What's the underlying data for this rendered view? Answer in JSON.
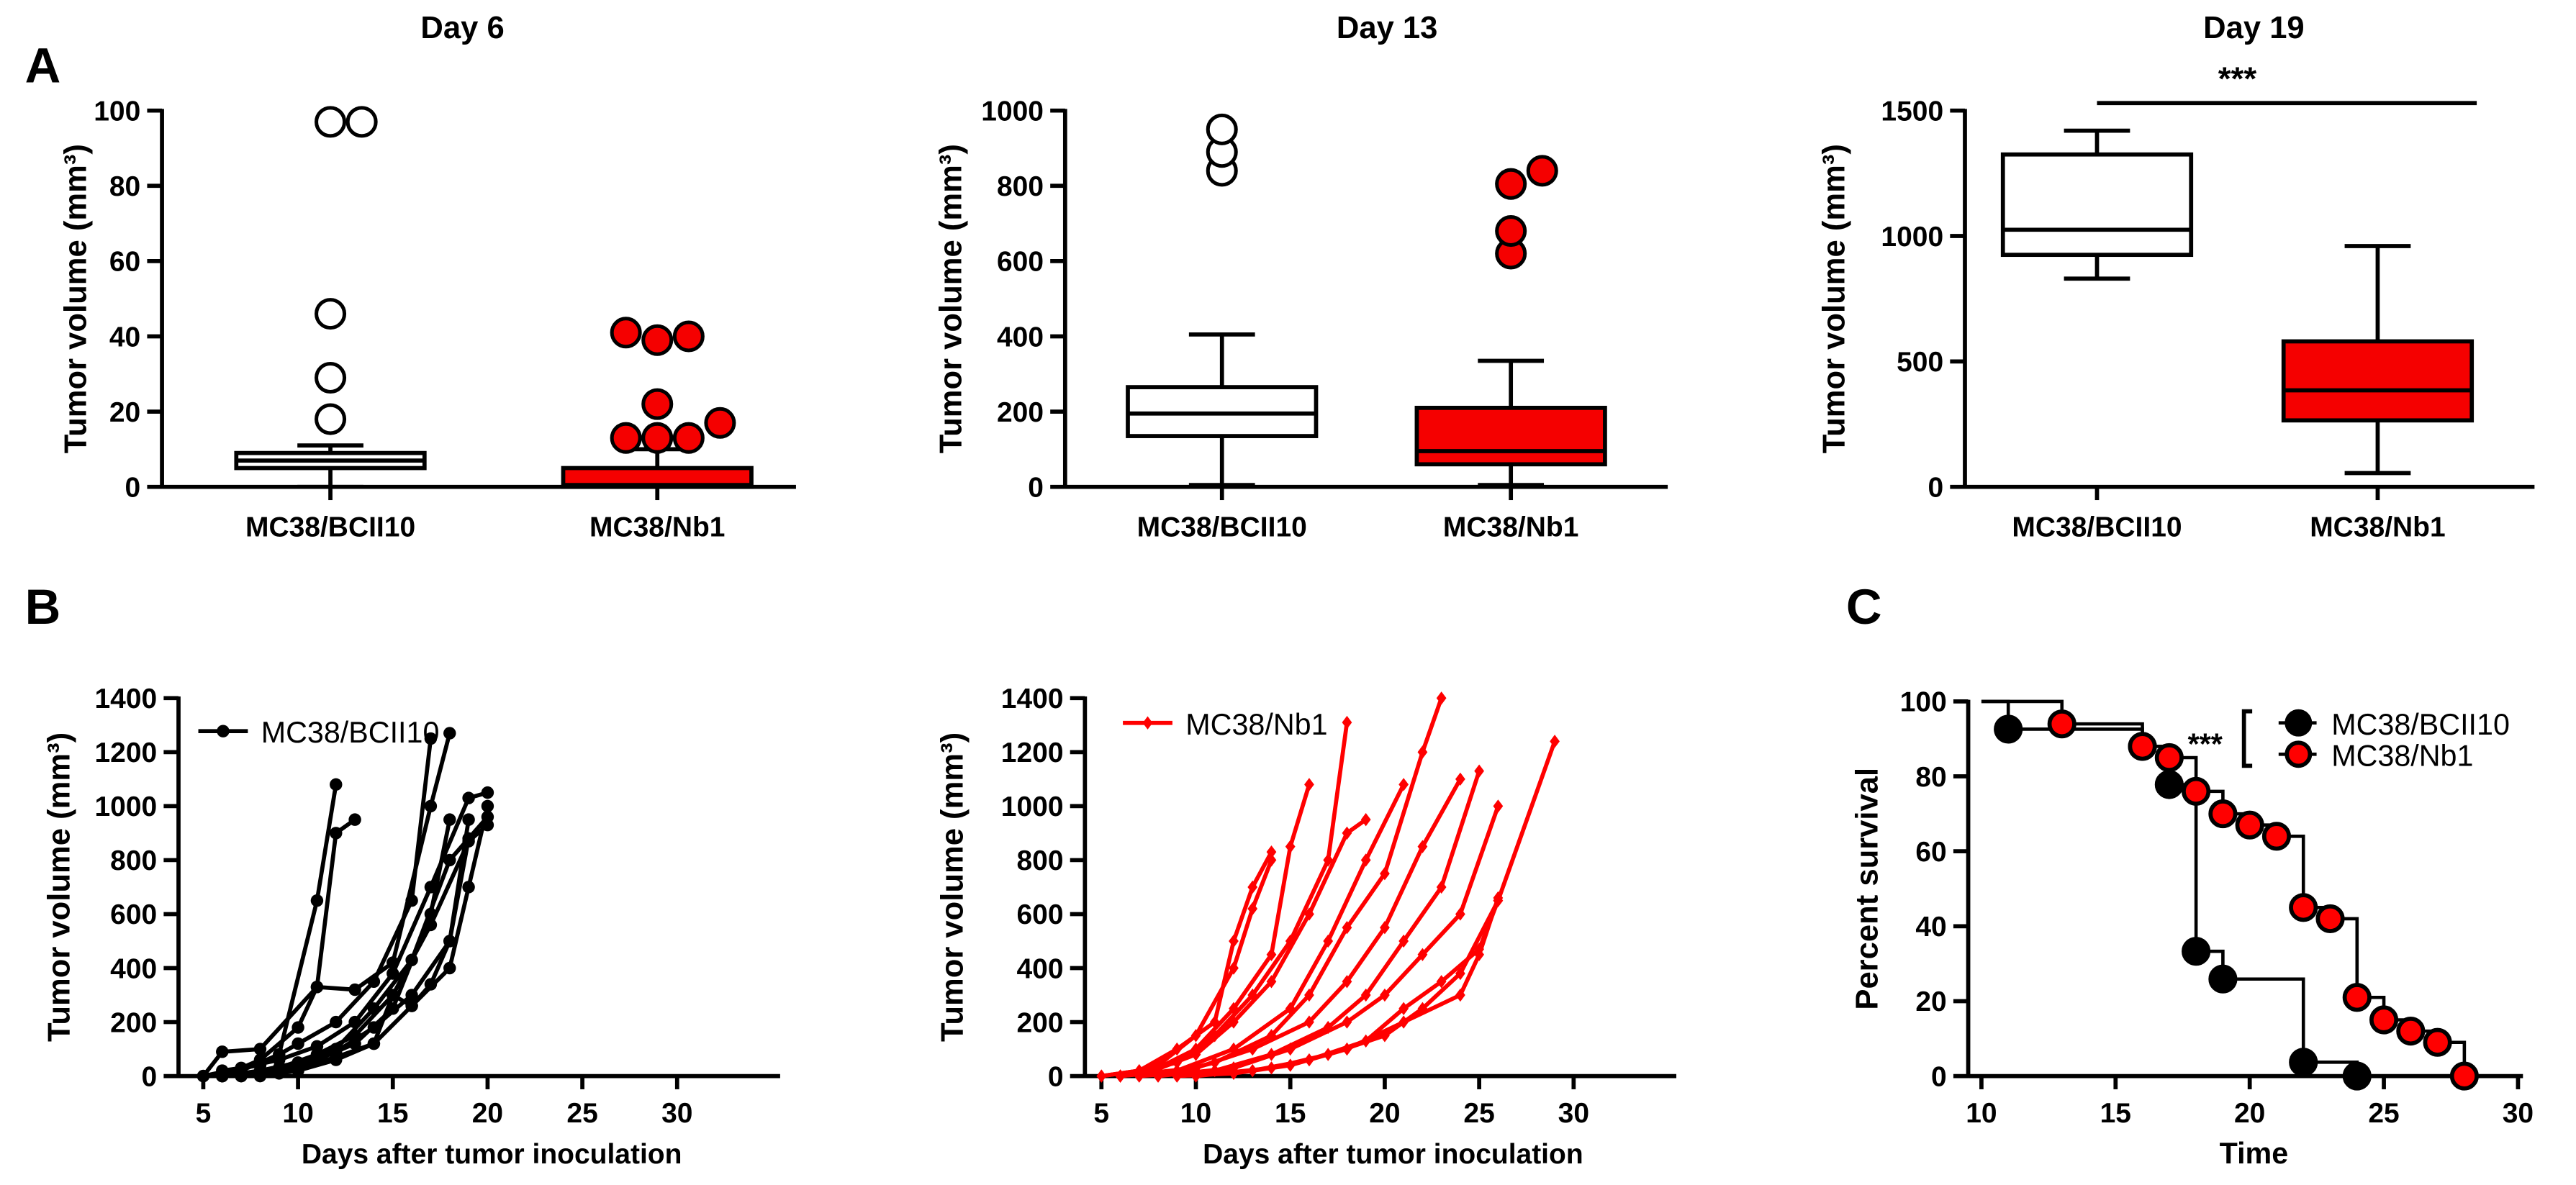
{
  "panel_labels": [
    "A",
    "B",
    "C"
  ],
  "colors": {
    "control": "#000000",
    "treated": "#ff0000",
    "treated_fill": "#f50000"
  },
  "chart_data": [
    {
      "type": "box",
      "title": "Day 6",
      "ylabel": "Tumor volume (mm³)",
      "ylim": [
        0,
        100
      ],
      "yticks": [
        0,
        20,
        40,
        60,
        80,
        100
      ],
      "categories": [
        "MC38/BCII10",
        "MC38/Nb1"
      ],
      "boxes": [
        {
          "whisker_low": 0,
          "q1": 5,
          "median": 7,
          "q3": 9,
          "whisker_high": 11,
          "outliers": [
            18,
            29,
            46,
            97,
            97
          ],
          "fill": "white"
        },
        {
          "whisker_low": 0,
          "q1": 0,
          "median": 0.5,
          "q3": 5,
          "whisker_high": 10,
          "outliers": [
            13,
            13,
            13,
            17,
            22,
            39,
            40,
            41
          ],
          "fill": "red"
        }
      ]
    },
    {
      "type": "box",
      "title": "Day 13",
      "ylabel": "Tumor volume (mm³)",
      "ylim": [
        0,
        1000
      ],
      "yticks": [
        0,
        200,
        400,
        600,
        800,
        1000
      ],
      "categories": [
        "MC38/BCII10",
        "MC38/Nb1"
      ],
      "boxes": [
        {
          "whisker_low": 5,
          "q1": 135,
          "median": 195,
          "q3": 265,
          "whisker_high": 405,
          "outliers": [
            840,
            890,
            950
          ],
          "fill": "white"
        },
        {
          "whisker_low": 5,
          "q1": 60,
          "median": 95,
          "q3": 210,
          "whisker_high": 335,
          "outliers": [
            620,
            680,
            805,
            840
          ],
          "fill": "red"
        }
      ]
    },
    {
      "type": "box",
      "title": "Day 19",
      "ylabel": "Tumor volume (mm³)",
      "ylim": [
        0,
        1500
      ],
      "yticks": [
        0,
        500,
        1000,
        1500
      ],
      "categories": [
        "MC38/BCII10",
        "MC38/Nb1"
      ],
      "significance": "***",
      "boxes": [
        {
          "whisker_low": 830,
          "q1": 925,
          "median": 1025,
          "q3": 1325,
          "whisker_high": 1420,
          "outliers": [],
          "fill": "white"
        },
        {
          "whisker_low": 55,
          "q1": 265,
          "median": 385,
          "q3": 580,
          "whisker_high": 960,
          "outliers": [],
          "fill": "red"
        }
      ]
    },
    {
      "type": "line",
      "xlabel": "Days after tumor inoculation",
      "ylabel": "Tumor volume (mm³)",
      "xlim": [
        5,
        35
      ],
      "xticks": [
        5,
        10,
        15,
        20,
        25,
        30
      ],
      "ylim": [
        0,
        1400
      ],
      "yticks": [
        0,
        200,
        400,
        600,
        800,
        1000,
        1200,
        1400
      ],
      "legend": "MC38/BCII10",
      "color": "#000000",
      "marker": "circle",
      "series": [
        [
          [
            6,
            0
          ],
          [
            7,
            20
          ],
          [
            9,
            80
          ],
          [
            11,
            650
          ],
          [
            12,
            1080
          ]
        ],
        [
          [
            6,
            0
          ],
          [
            8,
            60
          ],
          [
            10,
            180
          ],
          [
            11,
            330
          ],
          [
            12,
            900
          ],
          [
            13,
            950
          ]
        ],
        [
          [
            5,
            0
          ],
          [
            6,
            90
          ],
          [
            8,
            100
          ],
          [
            11,
            330
          ],
          [
            13,
            320
          ],
          [
            15,
            420
          ],
          [
            17,
            1000
          ],
          [
            18,
            1270
          ]
        ],
        [
          [
            6,
            20
          ],
          [
            8,
            40
          ],
          [
            10,
            120
          ],
          [
            12,
            200
          ],
          [
            14,
            350
          ],
          [
            16,
            650
          ],
          [
            17,
            1250
          ]
        ],
        [
          [
            5,
            0
          ],
          [
            7,
            30
          ],
          [
            9,
            60
          ],
          [
            11,
            110
          ],
          [
            13,
            200
          ],
          [
            15,
            380
          ],
          [
            17,
            700
          ],
          [
            19,
            1030
          ],
          [
            20,
            1050
          ]
        ],
        [
          [
            6,
            0
          ],
          [
            8,
            10
          ],
          [
            10,
            40
          ],
          [
            12,
            100
          ],
          [
            14,
            250
          ],
          [
            16,
            430
          ],
          [
            18,
            800
          ],
          [
            20,
            960
          ]
        ],
        [
          [
            7,
            0
          ],
          [
            9,
            30
          ],
          [
            11,
            80
          ],
          [
            13,
            150
          ],
          [
            15,
            300
          ],
          [
            17,
            560
          ],
          [
            19,
            870
          ],
          [
            20,
            930
          ]
        ],
        [
          [
            6,
            0
          ],
          [
            8,
            20
          ],
          [
            10,
            50
          ],
          [
            12,
            90
          ],
          [
            14,
            180
          ],
          [
            16,
            300
          ],
          [
            18,
            500
          ],
          [
            19,
            950
          ]
        ],
        [
          [
            7,
            0
          ],
          [
            9,
            10
          ],
          [
            11,
            60
          ],
          [
            13,
            120
          ],
          [
            15,
            250
          ],
          [
            17,
            600
          ],
          [
            18,
            950
          ]
        ],
        [
          [
            6,
            0
          ],
          [
            8,
            5
          ],
          [
            10,
            30
          ],
          [
            12,
            70
          ],
          [
            14,
            120
          ],
          [
            16,
            260
          ],
          [
            18,
            400
          ],
          [
            19,
            700
          ],
          [
            20,
            1000
          ]
        ],
        [
          [
            8,
            0
          ],
          [
            10,
            20
          ],
          [
            12,
            60
          ],
          [
            14,
            120
          ],
          [
            15,
            300
          ],
          [
            16,
            260
          ],
          [
            17,
            340
          ],
          [
            18,
            500
          ],
          [
            19,
            880
          ]
        ]
      ]
    },
    {
      "type": "line",
      "xlabel": "Days after tumor inoculation",
      "ylabel": "Tumor volume (mm³)",
      "xlim": [
        5,
        35
      ],
      "xticks": [
        5,
        10,
        15,
        20,
        25,
        30
      ],
      "ylim": [
        0,
        1400
      ],
      "yticks": [
        0,
        200,
        400,
        600,
        800,
        1000,
        1200,
        1400
      ],
      "legend": "MC38/Nb1",
      "color": "#ff0000",
      "marker": "diamond",
      "series": [
        [
          [
            5,
            0
          ],
          [
            7,
            20
          ],
          [
            9,
            100
          ],
          [
            11,
            200
          ],
          [
            12,
            500
          ],
          [
            13,
            700
          ],
          [
            14,
            830
          ]
        ],
        [
          [
            6,
            0
          ],
          [
            8,
            40
          ],
          [
            10,
            150
          ],
          [
            12,
            400
          ],
          [
            13,
            620
          ],
          [
            14,
            800
          ]
        ],
        [
          [
            5,
            0
          ],
          [
            8,
            30
          ],
          [
            10,
            100
          ],
          [
            12,
            250
          ],
          [
            14,
            450
          ],
          [
            15,
            850
          ],
          [
            16,
            1080
          ]
        ],
        [
          [
            6,
            0
          ],
          [
            9,
            50
          ],
          [
            11,
            150
          ],
          [
            13,
            300
          ],
          [
            15,
            500
          ],
          [
            17,
            800
          ],
          [
            18,
            1310
          ]
        ],
        [
          [
            7,
            0
          ],
          [
            10,
            80
          ],
          [
            12,
            200
          ],
          [
            14,
            350
          ],
          [
            16,
            600
          ],
          [
            18,
            900
          ],
          [
            19,
            950
          ]
        ],
        [
          [
            6,
            0
          ],
          [
            9,
            20
          ],
          [
            12,
            100
          ],
          [
            15,
            250
          ],
          [
            17,
            500
          ],
          [
            19,
            800
          ],
          [
            21,
            1080
          ]
        ],
        [
          [
            8,
            0
          ],
          [
            11,
            50
          ],
          [
            14,
            150
          ],
          [
            16,
            300
          ],
          [
            18,
            550
          ],
          [
            20,
            750
          ],
          [
            22,
            1200
          ],
          [
            23,
            1400
          ]
        ],
        [
          [
            6,
            0
          ],
          [
            10,
            30
          ],
          [
            13,
            100
          ],
          [
            16,
            200
          ],
          [
            18,
            350
          ],
          [
            20,
            550
          ],
          [
            22,
            850
          ],
          [
            24,
            1100
          ]
        ],
        [
          [
            7,
            0
          ],
          [
            11,
            20
          ],
          [
            14,
            80
          ],
          [
            17,
            180
          ],
          [
            19,
            300
          ],
          [
            21,
            500
          ],
          [
            23,
            700
          ],
          [
            25,
            1130
          ]
        ],
        [
          [
            8,
            0
          ],
          [
            12,
            30
          ],
          [
            15,
            100
          ],
          [
            18,
            200
          ],
          [
            20,
            300
          ],
          [
            22,
            450
          ],
          [
            24,
            600
          ],
          [
            26,
            1000
          ]
        ],
        [
          [
            9,
            0
          ],
          [
            13,
            20
          ],
          [
            16,
            60
          ],
          [
            19,
            130
          ],
          [
            21,
            250
          ],
          [
            23,
            350
          ],
          [
            25,
            470
          ],
          [
            26,
            650
          ]
        ],
        [
          [
            10,
            0
          ],
          [
            14,
            30
          ],
          [
            17,
            80
          ],
          [
            20,
            150
          ],
          [
            22,
            250
          ],
          [
            24,
            380
          ],
          [
            26,
            650
          ],
          [
            29,
            1240
          ]
        ],
        [
          [
            9,
            0
          ],
          [
            12,
            10
          ],
          [
            15,
            40
          ],
          [
            18,
            100
          ],
          [
            21,
            200
          ],
          [
            24,
            300
          ],
          [
            25,
            450
          ],
          [
            26,
            660
          ]
        ]
      ]
    },
    {
      "type": "survival",
      "xlabel": "Time",
      "ylabel": "Percent survival",
      "xlim": [
        10,
        30
      ],
      "xticks": [
        10,
        15,
        20,
        25,
        30
      ],
      "ylim": [
        0,
        100
      ],
      "yticks": [
        0,
        20,
        40,
        60,
        80,
        100
      ],
      "significance": "***",
      "series": [
        {
          "name": "MC38/BCII10",
          "fill": "#000000",
          "start": [
            10,
            100
          ],
          "points": [
            [
              11,
              92.6
            ],
            [
              16,
              88
            ],
            [
              17,
              77.8
            ],
            [
              18,
              33.3
            ],
            [
              19,
              25.9
            ],
            [
              22,
              3.7
            ],
            [
              24,
              0
            ]
          ]
        },
        {
          "name": "MC38/Nb1",
          "fill": "#ff0000",
          "start": [
            10,
            100
          ],
          "points": [
            [
              13,
              94
            ],
            [
              16,
              88
            ],
            [
              17,
              85
            ],
            [
              18,
              76
            ],
            [
              19,
              70
            ],
            [
              20,
              67
            ],
            [
              21,
              64
            ],
            [
              22,
              45
            ],
            [
              23,
              42
            ],
            [
              24,
              21
            ],
            [
              25,
              15
            ],
            [
              26,
              12
            ],
            [
              27,
              9
            ],
            [
              28,
              0
            ]
          ]
        }
      ]
    }
  ]
}
